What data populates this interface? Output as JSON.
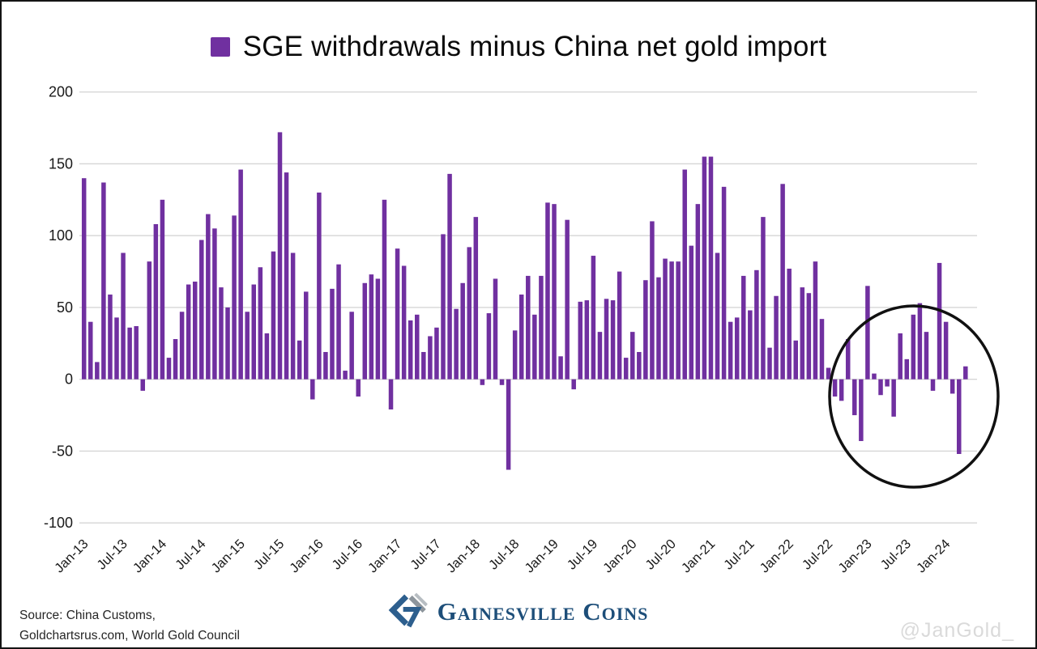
{
  "title": {
    "text": "SGE withdrawals minus China net gold import",
    "marker_color": "#7030A0"
  },
  "chart_data": {
    "type": "bar",
    "title": "SGE withdrawals minus China net gold import",
    "bar_color": "#7030A0",
    "grid": "horizontal",
    "legend_position": "top-center",
    "ylim": [
      -100,
      200
    ],
    "y_ticks": [
      200,
      150,
      100,
      50,
      0,
      -50,
      -100
    ],
    "x_tick_every": 6,
    "categories": [
      "Jan-13",
      "Feb-13",
      "Mar-13",
      "Apr-13",
      "May-13",
      "Jun-13",
      "Jul-13",
      "Aug-13",
      "Sep-13",
      "Oct-13",
      "Nov-13",
      "Dec-13",
      "Jan-14",
      "Feb-14",
      "Mar-14",
      "Apr-14",
      "May-14",
      "Jun-14",
      "Jul-14",
      "Aug-14",
      "Sep-14",
      "Oct-14",
      "Nov-14",
      "Dec-14",
      "Jan-15",
      "Feb-15",
      "Mar-15",
      "Apr-15",
      "May-15",
      "Jun-15",
      "Jul-15",
      "Aug-15",
      "Sep-15",
      "Oct-15",
      "Nov-15",
      "Dec-15",
      "Jan-16",
      "Feb-16",
      "Mar-16",
      "Apr-16",
      "May-16",
      "Jun-16",
      "Jul-16",
      "Aug-16",
      "Sep-16",
      "Oct-16",
      "Nov-16",
      "Dec-16",
      "Jan-17",
      "Feb-17",
      "Mar-17",
      "Apr-17",
      "May-17",
      "Jun-17",
      "Jul-17",
      "Aug-17",
      "Sep-17",
      "Oct-17",
      "Nov-17",
      "Dec-17",
      "Jan-18",
      "Feb-18",
      "Mar-18",
      "Apr-18",
      "May-18",
      "Jun-18",
      "Jul-18",
      "Aug-18",
      "Sep-18",
      "Oct-18",
      "Nov-18",
      "Dec-18",
      "Jan-19",
      "Feb-19",
      "Mar-19",
      "Apr-19",
      "May-19",
      "Jun-19",
      "Jul-19",
      "Aug-19",
      "Sep-19",
      "Oct-19",
      "Nov-19",
      "Dec-19",
      "Jan-20",
      "Feb-20",
      "Mar-20",
      "Apr-20",
      "May-20",
      "Jun-20",
      "Jul-20",
      "Aug-20",
      "Sep-20",
      "Oct-20",
      "Nov-20",
      "Dec-20",
      "Jan-21",
      "Feb-21",
      "Mar-21",
      "Apr-21",
      "May-21",
      "Jun-21",
      "Jul-21",
      "Aug-21",
      "Sep-21",
      "Oct-21",
      "Nov-21",
      "Dec-21",
      "Jan-22",
      "Feb-22",
      "Mar-22",
      "Apr-22",
      "May-22",
      "Jun-22",
      "Jul-22",
      "Aug-22",
      "Sep-22",
      "Oct-22",
      "Nov-22",
      "Dec-22",
      "Jan-23",
      "Feb-23",
      "Mar-23",
      "Apr-23",
      "May-23",
      "Jun-23",
      "Jul-23",
      "Aug-23",
      "Sep-23",
      "Oct-23",
      "Nov-23",
      "Dec-23",
      "Jan-24",
      "Feb-24",
      "Mar-24",
      "Apr-24"
    ],
    "values": [
      140,
      40,
      12,
      137,
      59,
      43,
      88,
      36,
      37,
      -8,
      82,
      108,
      125,
      15,
      28,
      47,
      66,
      68,
      97,
      115,
      105,
      64,
      50,
      114,
      146,
      47,
      66,
      78,
      32,
      89,
      172,
      144,
      88,
      27,
      61,
      -14,
      130,
      19,
      63,
      80,
      6,
      47,
      -12,
      67,
      73,
      70,
      125,
      -21,
      91,
      79,
      41,
      45,
      19,
      30,
      36,
      101,
      143,
      49,
      67,
      92,
      113,
      -4,
      46,
      70,
      -4,
      -63,
      34,
      59,
      72,
      45,
      72,
      123,
      122,
      16,
      111,
      -7,
      54,
      55,
      86,
      33,
      56,
      55,
      75,
      15,
      33,
      19,
      69,
      110,
      71,
      84,
      82,
      82,
      146,
      93,
      122,
      155,
      155,
      88,
      134,
      40,
      43,
      72,
      48,
      76,
      113,
      22,
      58,
      136,
      77,
      27,
      64,
      60,
      82,
      42,
      8,
      -12,
      -15,
      28,
      -25,
      -43,
      65,
      4,
      -11,
      -5,
      -26,
      32,
      14,
      45,
      53,
      33,
      -8,
      81,
      40,
      -10,
      -52,
      9
    ],
    "annotation": {
      "shape": "ellipse",
      "meaning": "highlight of recent period Jul-22 onward",
      "stroke_color": "#111111"
    }
  },
  "source": {
    "line1": "Source: China Customs,",
    "line2": "Goldchartsrus.com, World Gold Council"
  },
  "logo": {
    "text": "Gainesville Coins",
    "navy": "#2d5f8e",
    "gray": "#8d959c"
  },
  "watermark": {
    "text": "@JanGold_"
  }
}
